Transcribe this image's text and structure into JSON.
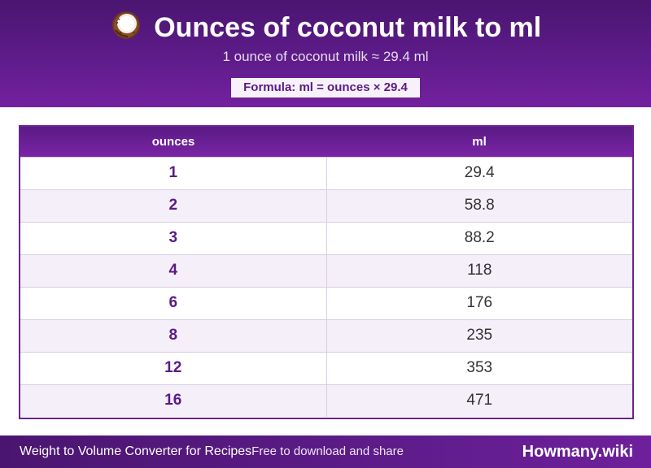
{
  "header": {
    "icon": "coconut-icon",
    "title": "Ounces of coconut milk to ml",
    "subtitle": "1 ounce of coconut milk ≈ 29.4 ml",
    "formula": "Formula: ml = ounces × 29.4"
  },
  "table": {
    "columns": [
      "ounces",
      "ml"
    ],
    "rows": [
      {
        "ounces": "1",
        "ml": "29.4"
      },
      {
        "ounces": "2",
        "ml": "58.8"
      },
      {
        "ounces": "3",
        "ml": "88.2"
      },
      {
        "ounces": "4",
        "ml": "118"
      },
      {
        "ounces": "6",
        "ml": "176"
      },
      {
        "ounces": "8",
        "ml": "235"
      },
      {
        "ounces": "12",
        "ml": "353"
      },
      {
        "ounces": "16",
        "ml": "471"
      }
    ]
  },
  "footer": {
    "left_title": "Weight to Volume Converter for Recipes",
    "left_tagline": "Free to download and share",
    "brand": "Howmany.wiki"
  },
  "colors": {
    "brand_purple": "#5e1c8a",
    "accent_text": "#5b1a87",
    "row_alt": "#f5eff9"
  }
}
